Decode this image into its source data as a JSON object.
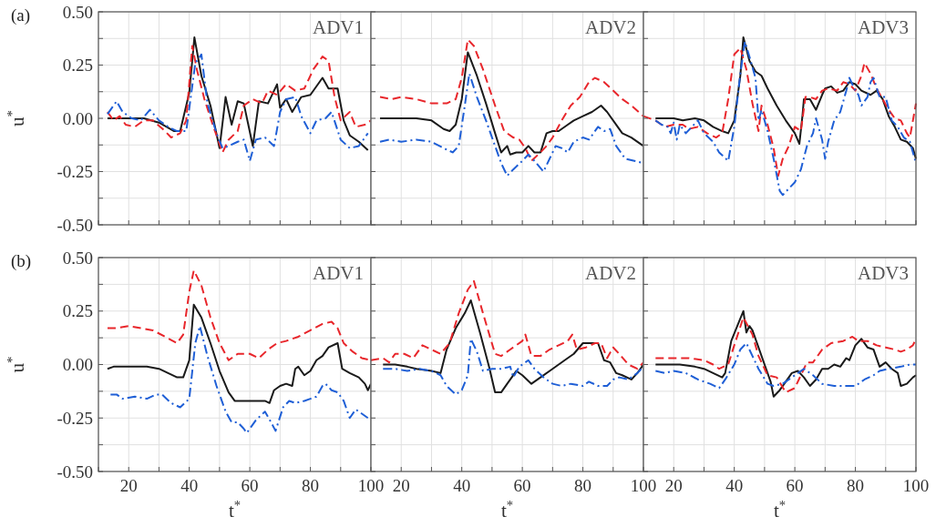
{
  "chart_data": [
    {
      "type": "line",
      "ylabel": "u$^{*}$",
      "annotations": [
        "ADV1",
        "(a)"
      ],
      "grid": true,
      "tick_labels": "y",
      "xlim": [
        10,
        100
      ],
      "ylim": [
        -0.5,
        0.5
      ],
      "xticks": [
        {
          "value": 10,
          "label": null
        },
        {
          "value": 20,
          "label": null
        },
        {
          "value": 30,
          "label": null
        },
        {
          "value": 40,
          "label": null
        },
        {
          "value": 50,
          "label": null
        },
        {
          "value": 60,
          "label": null
        },
        {
          "value": 70,
          "label": null
        },
        {
          "value": 80,
          "label": null
        },
        {
          "value": 90,
          "label": null
        },
        {
          "value": 100,
          "label": null
        }
      ],
      "yticks": [
        {
          "value": -0.5,
          "label": "-0.50"
        },
        {
          "value": -0.375,
          "label": null
        },
        {
          "value": -0.25,
          "label": "-0.25"
        },
        {
          "value": -0.125,
          "label": null
        },
        {
          "value": 0,
          "label": "0.00"
        },
        {
          "value": 0.125,
          "label": null
        },
        {
          "value": 0.25,
          "label": "0.25"
        },
        {
          "value": 0.375,
          "label": null
        },
        {
          "value": 0.5,
          "label": "0.50"
        }
      ],
      "series": [
        {
          "color": "#1a1a1a",
          "line_style": "solid",
          "x": [
            13,
            20,
            25,
            30,
            35,
            37,
            40,
            41.7,
            44,
            47,
            50,
            52,
            54,
            56,
            58,
            61,
            63,
            66,
            69,
            70,
            72,
            74,
            77,
            80,
            84,
            86,
            89,
            91,
            93,
            96,
            99
          ],
          "values": [
            0,
            0,
            0,
            -0.02,
            -0.06,
            -0.06,
            0.12,
            0.38,
            0.2,
            0.06,
            -0.14,
            0.1,
            -0.03,
            0.08,
            0.07,
            -0.13,
            0.08,
            0.07,
            0.16,
            0.05,
            0.09,
            0.03,
            0.1,
            0.11,
            0.19,
            0.14,
            0.14,
            -0.01,
            -0.08,
            -0.11,
            -0.15
          ]
        },
        {
          "color": "#e8262b",
          "line_style": "dashed",
          "x": [
            13,
            15,
            17,
            19,
            22,
            25,
            28,
            32,
            34,
            37,
            39,
            41,
            42.5,
            45,
            48,
            51,
            53,
            56,
            58,
            61,
            64,
            66,
            69,
            72,
            75,
            78,
            81,
            84,
            86,
            88,
            90,
            93,
            95,
            98,
            100
          ],
          "values": [
            0.03,
            -0.01,
            0.01,
            -0.03,
            -0.04,
            -0.01,
            -0.01,
            -0.06,
            -0.09,
            -0.07,
            -0.01,
            0.34,
            0.23,
            0.09,
            -0.04,
            -0.16,
            -0.1,
            -0.06,
            0.06,
            0.09,
            0.07,
            0.13,
            0.11,
            0.16,
            0.13,
            0.14,
            0.23,
            0.29,
            0.27,
            0.1,
            -0.01,
            0.03,
            -0.04,
            -0.03,
            -0.01
          ]
        },
        {
          "color": "#1f5fd6",
          "line_style": "dashdot",
          "x": [
            13,
            16,
            18,
            21,
            24,
            27,
            30,
            33,
            36,
            39,
            42,
            44,
            46,
            49,
            51,
            53,
            56,
            58,
            60,
            62,
            65,
            68,
            70,
            72,
            75,
            77,
            80,
            82,
            85,
            87,
            90,
            93,
            96,
            99
          ],
          "values": [
            0.02,
            0.08,
            0.03,
            0,
            -0.01,
            0.04,
            -0.01,
            -0.04,
            -0.06,
            -0.06,
            0.26,
            0.3,
            0.07,
            -0.07,
            -0.14,
            -0.13,
            -0.11,
            -0.1,
            -0.2,
            -0.1,
            -0.09,
            -0.13,
            0.03,
            0.09,
            0.1,
            0.01,
            -0.07,
            -0.01,
            0,
            0.03,
            -0.1,
            -0.14,
            -0.13,
            -0.07
          ]
        }
      ]
    },
    {
      "type": "line",
      "annotations": [
        "ADV2"
      ],
      "grid": true,
      "tick_labels": false,
      "xlim": [
        10,
        100
      ],
      "ylim": [
        -0.5,
        0.5
      ],
      "xticks": [
        {
          "value": 10,
          "label": null
        },
        {
          "value": 20,
          "label": null
        },
        {
          "value": 30,
          "label": null
        },
        {
          "value": 40,
          "label": null
        },
        {
          "value": 50,
          "label": null
        },
        {
          "value": 60,
          "label": null
        },
        {
          "value": 70,
          "label": null
        },
        {
          "value": 80,
          "label": null
        },
        {
          "value": 90,
          "label": null
        },
        {
          "value": 100,
          "label": null
        }
      ],
      "yticks": [
        {
          "value": -0.5,
          "label": null
        },
        {
          "value": -0.375,
          "label": null
        },
        {
          "value": -0.25,
          "label": null
        },
        {
          "value": -0.125,
          "label": null
        },
        {
          "value": 0,
          "label": null
        },
        {
          "value": 0.125,
          "label": null
        },
        {
          "value": 0.25,
          "label": null
        },
        {
          "value": 0.375,
          "label": null
        },
        {
          "value": 0.5,
          "label": null
        }
      ],
      "series": [
        {
          "color": "#1a1a1a",
          "line_style": "solid",
          "x": [
            13,
            20,
            25,
            30,
            34,
            36,
            38,
            40,
            42,
            45,
            48,
            51,
            53,
            55,
            56,
            58,
            60,
            62,
            64,
            66,
            68,
            70,
            72,
            75,
            77,
            80,
            83,
            86,
            88,
            90,
            93,
            96,
            100
          ],
          "values": [
            0,
            0,
            0,
            -0.01,
            -0.05,
            -0.06,
            -0.03,
            0.09,
            0.31,
            0.2,
            0.07,
            -0.07,
            -0.16,
            -0.13,
            -0.17,
            -0.16,
            -0.16,
            -0.13,
            -0.16,
            -0.16,
            -0.07,
            -0.06,
            -0.06,
            -0.03,
            -0.01,
            0.01,
            0.03,
            0.06,
            0.03,
            -0.01,
            -0.07,
            -0.09,
            -0.13
          ]
        },
        {
          "color": "#e8262b",
          "line_style": "dashed",
          "x": [
            13,
            17,
            20,
            25,
            30,
            35,
            38,
            40,
            42,
            44,
            47,
            51,
            54,
            57,
            59,
            61,
            63,
            66,
            68,
            70,
            73,
            76,
            79,
            82,
            84,
            87,
            90,
            93,
            96,
            100
          ],
          "values": [
            0.1,
            0.09,
            0.1,
            0.09,
            0.07,
            0.07,
            0.09,
            0.19,
            0.37,
            0.34,
            0.23,
            0.06,
            -0.06,
            -0.09,
            -0.1,
            -0.14,
            -0.2,
            -0.16,
            -0.13,
            -0.09,
            -0.01,
            0.06,
            0.1,
            0.17,
            0.19,
            0.17,
            0.13,
            0.09,
            0.06,
            0.01
          ]
        },
        {
          "color": "#1f5fd6",
          "line_style": "dashdot",
          "x": [
            13,
            16,
            20,
            25,
            30,
            34,
            37,
            39,
            41,
            42.5,
            45,
            48,
            50,
            53,
            55,
            57,
            60,
            62,
            64,
            67,
            69,
            71,
            73,
            75,
            77,
            80,
            82,
            85,
            87,
            89,
            91,
            94,
            97,
            100
          ],
          "values": [
            -0.11,
            -0.1,
            -0.11,
            -0.1,
            -0.11,
            -0.14,
            -0.16,
            -0.13,
            0.06,
            0.21,
            0.1,
            -0.01,
            -0.09,
            -0.21,
            -0.27,
            -0.24,
            -0.2,
            -0.17,
            -0.2,
            -0.25,
            -0.19,
            -0.13,
            -0.14,
            -0.16,
            -0.11,
            -0.09,
            -0.1,
            -0.04,
            -0.06,
            -0.05,
            -0.13,
            -0.19,
            -0.2,
            -0.21
          ]
        }
      ]
    },
    {
      "type": "line",
      "annotations": [
        "ADV3"
      ],
      "grid": true,
      "tick_labels": false,
      "xlim": [
        10,
        100
      ],
      "ylim": [
        -0.5,
        0.5
      ],
      "xticks": [
        {
          "value": 10,
          "label": null
        },
        {
          "value": 20,
          "label": null
        },
        {
          "value": 30,
          "label": null
        },
        {
          "value": 40,
          "label": null
        },
        {
          "value": 50,
          "label": null
        },
        {
          "value": 60,
          "label": null
        },
        {
          "value": 70,
          "label": null
        },
        {
          "value": 80,
          "label": null
        },
        {
          "value": 90,
          "label": null
        },
        {
          "value": 100,
          "label": null
        }
      ],
      "yticks": [
        {
          "value": -0.5,
          "label": null
        },
        {
          "value": -0.375,
          "label": null
        },
        {
          "value": -0.25,
          "label": null
        },
        {
          "value": -0.125,
          "label": null
        },
        {
          "value": 0,
          "label": null
        },
        {
          "value": 0.125,
          "label": null
        },
        {
          "value": 0.25,
          "label": null
        },
        {
          "value": 0.375,
          "label": null
        },
        {
          "value": 0.5,
          "label": null
        }
      ],
      "series": [
        {
          "color": "#1a1a1a",
          "line_style": "solid",
          "x": [
            14,
            17,
            20,
            23,
            27,
            30,
            33,
            36,
            38,
            40,
            42,
            43,
            45,
            47,
            49,
            51,
            54,
            57,
            60,
            61.5,
            62.5,
            63,
            65,
            67,
            69,
            70,
            72,
            74,
            76,
            78,
            80,
            82,
            85,
            87,
            89,
            91,
            93,
            95,
            97,
            99,
            100
          ],
          "values": [
            0,
            0,
            0,
            -0.01,
            0,
            -0.01,
            -0.04,
            -0.06,
            -0.07,
            -0.01,
            0.2,
            0.38,
            0.27,
            0.22,
            0.2,
            0.14,
            0.06,
            -0.01,
            -0.07,
            -0.12,
            0.01,
            0.09,
            0.09,
            0.04,
            0.11,
            0.14,
            0.15,
            0.12,
            0.13,
            0.17,
            0.16,
            0.13,
            0.11,
            0.13,
            0.09,
            0.01,
            -0.04,
            -0.1,
            -0.11,
            -0.14,
            -0.19
          ]
        },
        {
          "color": "#e8262b",
          "line_style": "dashed",
          "x": [
            10,
            14,
            17,
            20,
            23,
            25,
            28,
            31,
            34,
            36,
            38,
            40,
            42,
            44,
            46,
            48,
            49,
            51,
            53,
            54.5,
            56,
            58,
            60,
            62,
            63.5,
            65,
            67,
            69,
            71,
            74,
            76,
            78,
            80,
            82,
            83,
            85,
            87,
            89,
            91,
            93,
            95,
            97,
            98,
            100
          ],
          "values": [
            0.01,
            -0.01,
            -0.04,
            -0.03,
            -0.03,
            -0.05,
            -0.04,
            -0.07,
            -0.09,
            -0.07,
            0.09,
            0.3,
            0.33,
            0.23,
            0.07,
            -0.06,
            0.06,
            -0.03,
            -0.14,
            -0.27,
            -0.19,
            -0.13,
            -0.04,
            -0.06,
            0.1,
            0.1,
            0.09,
            0.13,
            0.14,
            0.13,
            0.17,
            0.16,
            0.13,
            0.2,
            0.26,
            0.21,
            0.14,
            0.09,
            0.04,
            0,
            -0.01,
            -0.07,
            -0.09,
            0.07
          ]
        },
        {
          "color": "#1f5fd6",
          "line_style": "dashdot",
          "x": [
            14,
            16,
            18,
            19,
            20,
            21,
            22,
            24,
            26,
            28,
            30,
            33,
            35,
            38,
            40,
            42,
            43.5,
            45,
            47,
            48,
            49,
            51,
            53,
            55,
            56,
            58,
            60,
            62,
            64,
            66,
            67,
            69,
            70,
            71,
            73,
            75,
            77,
            78,
            80,
            81,
            82,
            84,
            85,
            86,
            88,
            90,
            92,
            94,
            96,
            98,
            100
          ],
          "values": [
            -0.01,
            -0.03,
            -0.04,
            -0.07,
            -0.02,
            -0.1,
            -0.03,
            -0.07,
            -0.04,
            -0.01,
            -0.07,
            -0.11,
            -0.16,
            -0.2,
            -0.04,
            0.21,
            0.36,
            0.29,
            0.19,
            -0.01,
            0.04,
            -0.06,
            -0.19,
            -0.34,
            -0.36,
            -0.33,
            -0.3,
            -0.24,
            -0.13,
            -0.07,
            0,
            -0.1,
            -0.19,
            -0.11,
            -0.01,
            0.03,
            0.13,
            0.19,
            0.13,
            0.11,
            0.06,
            0.1,
            0.17,
            0.19,
            0.1,
            0.1,
            -0.01,
            -0.04,
            -0.09,
            -0.11,
            -0.21
          ]
        }
      ]
    },
    {
      "type": "line",
      "ylabel": "u$^{*}$",
      "xlabel": "t$^{*}$",
      "annotations": [
        "ADV1",
        "(b)"
      ],
      "grid": true,
      "xlim": [
        10,
        100
      ],
      "ylim": [
        -0.5,
        0.5
      ],
      "xticks": [
        {
          "value": 10,
          "label": null
        },
        20,
        {
          "value": 30,
          "label": null
        },
        40,
        {
          "value": 50,
          "label": null
        },
        60,
        {
          "value": 70,
          "label": null
        },
        80,
        {
          "value": 90,
          "label": null
        },
        100
      ],
      "yticks": [
        {
          "value": -0.5,
          "label": "-0.50"
        },
        {
          "value": -0.375,
          "label": null
        },
        {
          "value": -0.25,
          "label": "-0.25"
        },
        {
          "value": -0.125,
          "label": null
        },
        {
          "value": 0,
          "label": "0.00"
        },
        {
          "value": 0.125,
          "label": null
        },
        {
          "value": 0.25,
          "label": "0.25"
        },
        {
          "value": 0.375,
          "label": null
        },
        {
          "value": 0.5,
          "label": "0.50"
        }
      ],
      "series": [
        {
          "color": "#1a1a1a",
          "line_style": "solid",
          "x": [
            13,
            15,
            18,
            22,
            26,
            30,
            33,
            36,
            38,
            40,
            41.5,
            44,
            47,
            50,
            53,
            55,
            60,
            65,
            66.5,
            68,
            70,
            72,
            74,
            75,
            76,
            78,
            80,
            82,
            84,
            86,
            89,
            90.5,
            93,
            96,
            98,
            99,
            100
          ],
          "values": [
            -0.02,
            -0.01,
            -0.01,
            -0.01,
            -0.01,
            -0.02,
            -0.04,
            -0.06,
            -0.06,
            0.02,
            0.28,
            0.22,
            0.1,
            -0.03,
            -0.13,
            -0.17,
            -0.17,
            -0.17,
            -0.18,
            -0.12,
            -0.1,
            -0.09,
            -0.1,
            -0.02,
            -0.01,
            -0.05,
            -0.03,
            0.02,
            0.04,
            0.08,
            0.1,
            -0.02,
            -0.04,
            -0.06,
            -0.09,
            -0.12,
            -0.09
          ]
        },
        {
          "color": "#e8262b",
          "line_style": "dashed",
          "x": [
            13,
            16,
            20,
            24,
            28,
            32,
            36,
            38,
            40,
            41.5,
            44,
            47,
            50,
            53,
            56,
            60,
            63,
            66,
            69,
            72,
            76,
            80,
            84,
            87,
            89,
            91,
            94,
            97,
            100
          ],
          "values": [
            0.17,
            0.17,
            0.18,
            0.17,
            0.16,
            0.13,
            0.1,
            0.14,
            0.34,
            0.44,
            0.37,
            0.22,
            0.1,
            0.02,
            0.05,
            0.05,
            0.03,
            0.07,
            0.1,
            0.11,
            0.13,
            0.16,
            0.19,
            0.2,
            0.17,
            0.1,
            0.06,
            0.03,
            0.02
          ]
        },
        {
          "color": "#1f5fd6",
          "line_style": "dashdot",
          "x": [
            14,
            16,
            18,
            22,
            26,
            29,
            31,
            34,
            37,
            40,
            42,
            43.5,
            46,
            49,
            52,
            54,
            56,
            58,
            59,
            62,
            65,
            67,
            68.5,
            71,
            73,
            75,
            78,
            80,
            82,
            84,
            85,
            87,
            89,
            91,
            93,
            95,
            97,
            99
          ],
          "values": [
            -0.14,
            -0.14,
            -0.16,
            -0.15,
            -0.16,
            -0.14,
            -0.14,
            -0.18,
            -0.2,
            -0.16,
            0.1,
            0.18,
            0.04,
            -0.1,
            -0.22,
            -0.27,
            -0.27,
            -0.3,
            -0.32,
            -0.26,
            -0.22,
            -0.27,
            -0.31,
            -0.2,
            -0.17,
            -0.18,
            -0.17,
            -0.16,
            -0.15,
            -0.1,
            -0.09,
            -0.12,
            -0.13,
            -0.17,
            -0.25,
            -0.21,
            -0.23,
            -0.25
          ]
        }
      ]
    },
    {
      "type": "line",
      "xlabel": "t$^{*}$",
      "annotations": [
        "ADV2"
      ],
      "grid": true,
      "tick_labels": "x",
      "xlim": [
        10,
        100
      ],
      "ylim": [
        -0.5,
        0.5
      ],
      "xticks": [
        {
          "value": 10,
          "label": null
        },
        20,
        {
          "value": 30,
          "label": null
        },
        40,
        {
          "value": 50,
          "label": null
        },
        60,
        {
          "value": 70,
          "label": null
        },
        80,
        {
          "value": 90,
          "label": null
        },
        100
      ],
      "yticks": [
        {
          "value": -0.5,
          "label": null
        },
        {
          "value": -0.375,
          "label": null
        },
        {
          "value": -0.25,
          "label": null
        },
        {
          "value": -0.125,
          "label": null
        },
        {
          "value": 0,
          "label": null
        },
        {
          "value": 0.125,
          "label": null
        },
        {
          "value": 0.25,
          "label": null
        },
        {
          "value": 0.375,
          "label": null
        },
        {
          "value": 0.5,
          "label": null
        }
      ],
      "series": [
        {
          "color": "#1a1a1a",
          "line_style": "solid",
          "x": [
            14,
            18,
            22,
            25,
            30,
            33,
            35,
            38,
            41,
            43,
            46,
            49,
            51,
            53,
            55,
            58,
            60,
            63,
            66,
            70,
            74,
            77,
            80,
            83,
            85,
            87,
            89,
            91,
            93,
            96,
            98,
            100
          ],
          "values": [
            0,
            0,
            -0.01,
            -0.02,
            -0.03,
            -0.04,
            0.07,
            0.17,
            0.24,
            0.3,
            0.15,
            -0.01,
            -0.13,
            -0.13,
            -0.09,
            -0.03,
            -0.05,
            -0.09,
            -0.06,
            -0.02,
            0.02,
            0.05,
            0.1,
            0.1,
            0.1,
            0.02,
            0.01,
            -0.04,
            -0.05,
            -0.07,
            -0.04,
            0
          ]
        },
        {
          "color": "#e8262b",
          "line_style": "dashed",
          "x": [
            10,
            14,
            16,
            18,
            21,
            24,
            27,
            30,
            33,
            36,
            39,
            42,
            44,
            47,
            51,
            53,
            56,
            60,
            61,
            63,
            66,
            69,
            72,
            75,
            76.5,
            78,
            81,
            84,
            86,
            88,
            90,
            92,
            95,
            98,
            100
          ],
          "values": [
            0.02,
            0.03,
            0.01,
            0.05,
            0.05,
            0.03,
            0.09,
            0.07,
            0.05,
            0.1,
            0.24,
            0.35,
            0.39,
            0.24,
            0.05,
            0.04,
            0.07,
            0.11,
            0.14,
            0.04,
            0.04,
            0.07,
            0.09,
            0.11,
            0.14,
            0.07,
            0.08,
            0.1,
            0.1,
            0.03,
            0.08,
            0.05,
            0,
            -0.02,
            0.01
          ]
        },
        {
          "color": "#1f5fd6",
          "line_style": "dashdot",
          "x": [
            14,
            18,
            22,
            26,
            30,
            33,
            35,
            38,
            40,
            42,
            43,
            45,
            47,
            50,
            53,
            56,
            57,
            59,
            62,
            64,
            67,
            70,
            73,
            76,
            80,
            82,
            85,
            88,
            90,
            92,
            95,
            98,
            100
          ],
          "values": [
            -0.02,
            -0.02,
            -0.03,
            -0.02,
            -0.03,
            -0.05,
            -0.1,
            -0.14,
            -0.12,
            -0.05,
            0.12,
            0.06,
            -0.03,
            -0.02,
            -0.02,
            -0.01,
            -0.06,
            -0.01,
            0.02,
            -0.02,
            -0.06,
            -0.09,
            -0.1,
            -0.09,
            -0.1,
            -0.08,
            -0.1,
            -0.1,
            -0.07,
            -0.06,
            -0.07,
            -0.04,
            -0.01
          ]
        }
      ]
    },
    {
      "type": "line",
      "xlabel": "t$^{*}$",
      "annotations": [
        "ADV3"
      ],
      "grid": true,
      "tick_labels": "x",
      "xlim": [
        10,
        100
      ],
      "ylim": [
        -0.5,
        0.5
      ],
      "xticks": [
        {
          "value": 10,
          "label": null
        },
        20,
        {
          "value": 30,
          "label": null
        },
        40,
        {
          "value": 50,
          "label": null
        },
        60,
        {
          "value": 70,
          "label": null
        },
        80,
        {
          "value": 90,
          "label": null
        },
        100
      ],
      "yticks": [
        {
          "value": -0.5,
          "label": null
        },
        {
          "value": -0.375,
          "label": null
        },
        {
          "value": -0.25,
          "label": null
        },
        {
          "value": -0.125,
          "label": null
        },
        {
          "value": 0,
          "label": null
        },
        {
          "value": 0.125,
          "label": null
        },
        {
          "value": 0.25,
          "label": null
        },
        {
          "value": 0.375,
          "label": null
        },
        {
          "value": 0.5,
          "label": null
        }
      ],
      "series": [
        {
          "color": "#1a1a1a",
          "line_style": "solid",
          "x": [
            14,
            18,
            22,
            27,
            30,
            33,
            36,
            37,
            39,
            41,
            43,
            44,
            45,
            46,
            48,
            50,
            52,
            53,
            55,
            57,
            59,
            61,
            63,
            65,
            67,
            69,
            71,
            73,
            75,
            77,
            78,
            80,
            82,
            84,
            86,
            88,
            90,
            92,
            94,
            95,
            97,
            99,
            100
          ],
          "values": [
            0,
            0,
            0,
            -0.01,
            -0.02,
            -0.04,
            -0.06,
            -0.04,
            0.11,
            0.18,
            0.25,
            0.15,
            0.18,
            0.16,
            0.08,
            0,
            -0.08,
            -0.15,
            -0.12,
            -0.08,
            -0.04,
            -0.03,
            -0.06,
            -0.1,
            -0.07,
            -0.02,
            -0.02,
            0,
            -0.01,
            0.03,
            0.02,
            0.09,
            0.12,
            0.08,
            0.07,
            -0.01,
            0.01,
            -0.02,
            -0.04,
            -0.1,
            -0.09,
            -0.06,
            -0.05
          ]
        },
        {
          "color": "#e8262b",
          "line_style": "dashed",
          "x": [
            14,
            20,
            25,
            30,
            33,
            35,
            38,
            40,
            43,
            46,
            48,
            51,
            54,
            57,
            60,
            62,
            64,
            66,
            69,
            72,
            76,
            79,
            81,
            84,
            87,
            90,
            93,
            95,
            97,
            99,
            100
          ],
          "values": [
            0.03,
            0.03,
            0.03,
            0.02,
            0,
            -0.02,
            0,
            0.09,
            0.22,
            0.14,
            0.04,
            -0.05,
            -0.06,
            -0.13,
            -0.11,
            -0.05,
            0.01,
            0.01,
            0.07,
            0.1,
            0.11,
            0.13,
            0.11,
            0.11,
            0.09,
            0.08,
            0.07,
            0.06,
            0.07,
            0.09,
            0.12
          ]
        },
        {
          "color": "#1f5fd6",
          "line_style": "dashdot",
          "x": [
            14,
            17,
            20,
            24,
            28,
            32,
            35,
            37,
            40,
            42,
            44,
            46,
            48,
            51,
            53,
            56,
            58,
            60,
            63,
            66,
            69,
            73,
            77,
            80,
            83,
            86,
            88,
            91,
            95,
            98,
            100
          ],
          "values": [
            -0.03,
            -0.04,
            -0.03,
            -0.04,
            -0.07,
            -0.09,
            -0.11,
            -0.07,
            0,
            0.07,
            0.1,
            0.04,
            -0.02,
            -0.09,
            -0.1,
            -0.09,
            -0.07,
            -0.05,
            -0.02,
            -0.05,
            -0.09,
            -0.1,
            -0.1,
            -0.1,
            -0.07,
            -0.05,
            -0.03,
            -0.02,
            -0.01,
            0,
            0
          ]
        }
      ]
    }
  ]
}
